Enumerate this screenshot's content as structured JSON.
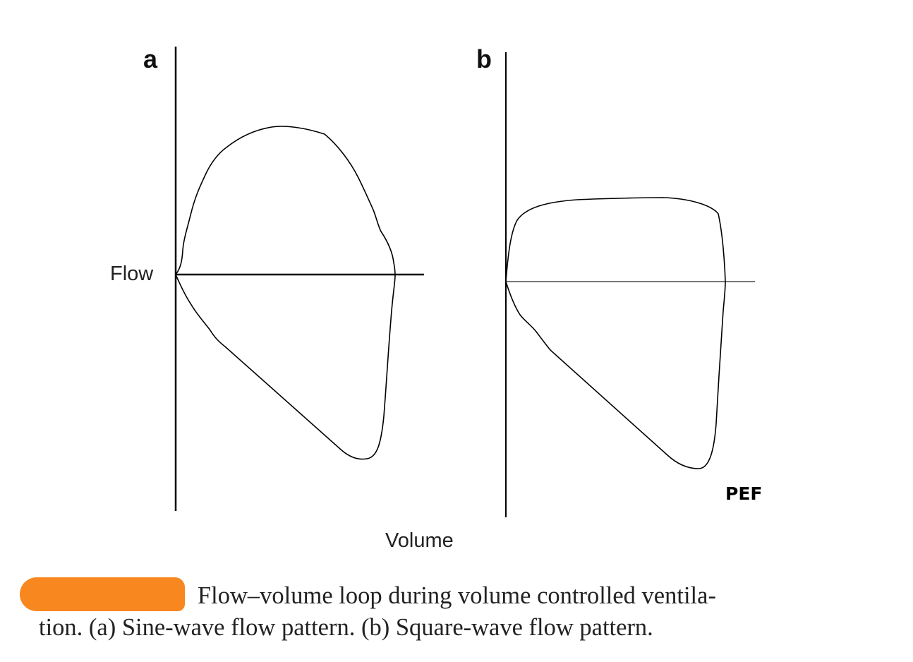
{
  "figure": {
    "panel_a_label": "a",
    "panel_b_label": "b",
    "y_axis_label": "Flow",
    "x_axis_label": "Volume",
    "pef_label": "PEF",
    "line_color": "#000000",
    "panel_b_baseline_color": "#777777"
  },
  "caption": {
    "redaction_color": "#f7871e",
    "line1": "Flow–volume loop during volume controlled ventila-",
    "line2": "tion. (a) Sine-wave flow pattern. (b) Square-wave flow pattern."
  }
}
